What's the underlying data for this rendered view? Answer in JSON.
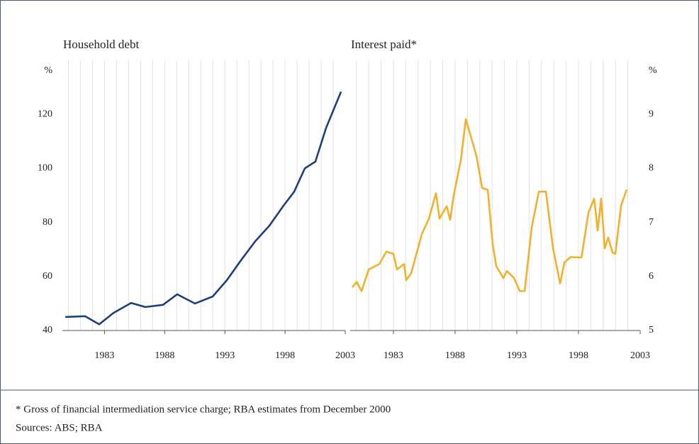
{
  "chart_data": [
    {
      "type": "line",
      "title": "Household debt",
      "y_unit": "%",
      "xlim": [
        1979.5,
        2003
      ],
      "xticks": [
        1983,
        1988,
        1993,
        1998,
        2003
      ],
      "xgrid": [
        1980,
        1981,
        1982,
        1983,
        1984,
        1985,
        1986,
        1987,
        1988,
        1989,
        1990,
        1991,
        1992,
        1993,
        1994,
        1995,
        1996,
        1997,
        1998,
        1999,
        2000,
        2001,
        2002
      ],
      "ylim": [
        40,
        140
      ],
      "yticks": [
        40,
        60,
        80,
        100,
        120
      ],
      "axis_side": "left",
      "series": [
        {
          "color": "#1f3f7a",
          "x": [
            1979.74,
            1981.38,
            1982.56,
            1983.74,
            1985.21,
            1986.39,
            1987.86,
            1989.04,
            1990.51,
            1991.99,
            1993.16,
            1994.34,
            1995.52,
            1996.7,
            1997.87,
            1998.76,
            1999.64,
            2000.52,
            2001.41,
            2002.65
          ],
          "values": [
            45,
            45.3,
            42.3,
            46.5,
            50.2,
            48.7,
            49.5,
            53.4,
            50,
            52.6,
            58.6,
            66,
            73,
            78.8,
            86.2,
            91.4,
            100,
            102.5,
            115,
            128.4
          ]
        }
      ]
    },
    {
      "type": "line",
      "title": "Interest paid*",
      "y_unit": "%",
      "xlim": [
        1979.5,
        2003
      ],
      "xticks": [
        1983,
        1988,
        1993,
        1998,
        2003
      ],
      "xgrid": [
        1980,
        1981,
        1982,
        1983,
        1984,
        1985,
        1986,
        1987,
        1988,
        1989,
        1990,
        1991,
        1992,
        1993,
        1994,
        1995,
        1996,
        1997,
        1998,
        1999,
        2000,
        2001,
        2002
      ],
      "ylim": [
        5,
        10
      ],
      "yticks": [
        5,
        6,
        7,
        8,
        9
      ],
      "axis_side": "right",
      "series": [
        {
          "color": "#f2b12c",
          "x": [
            1979.67,
            1980.02,
            1980.42,
            1981.0,
            1981.86,
            1982.43,
            1983.0,
            1983.29,
            1983.87,
            1984.04,
            1984.44,
            1985.3,
            1985.88,
            1986.45,
            1986.74,
            1987.32,
            1987.6,
            1987.89,
            1988.47,
            1988.87,
            1989.33,
            1989.73,
            1990.19,
            1990.65,
            1991.05,
            1991.34,
            1991.91,
            1992.2,
            1992.78,
            1993.24,
            1993.64,
            1994.21,
            1994.79,
            1995.36,
            1995.94,
            1996.51,
            1996.86,
            1997.37,
            1998.24,
            1998.81,
            1999.27,
            1999.56,
            1999.84,
            2000.13,
            2000.41,
            2000.76,
            2000.99,
            2001.45,
            2001.91
          ],
          "values": [
            5.8,
            5.9,
            5.73,
            6.13,
            6.23,
            6.46,
            6.42,
            6.13,
            6.23,
            5.93,
            6.06,
            6.78,
            7.07,
            7.54,
            7.07,
            7.3,
            7.05,
            7.5,
            8.16,
            8.91,
            8.55,
            8.23,
            7.64,
            7.6,
            6.59,
            6.19,
            5.97,
            6.1,
            5.97,
            5.73,
            5.73,
            6.91,
            7.57,
            7.57,
            6.52,
            5.87,
            6.26,
            6.36,
            6.35,
            7.18,
            7.44,
            6.85,
            7.44,
            6.52,
            6.72,
            6.44,
            6.42,
            7.31,
            7.61
          ]
        }
      ]
    }
  ],
  "footnotes": [
    "*  Gross of financial intermediation service charge; RBA estimates from December 2000",
    "Sources:  ABS; RBA"
  ]
}
